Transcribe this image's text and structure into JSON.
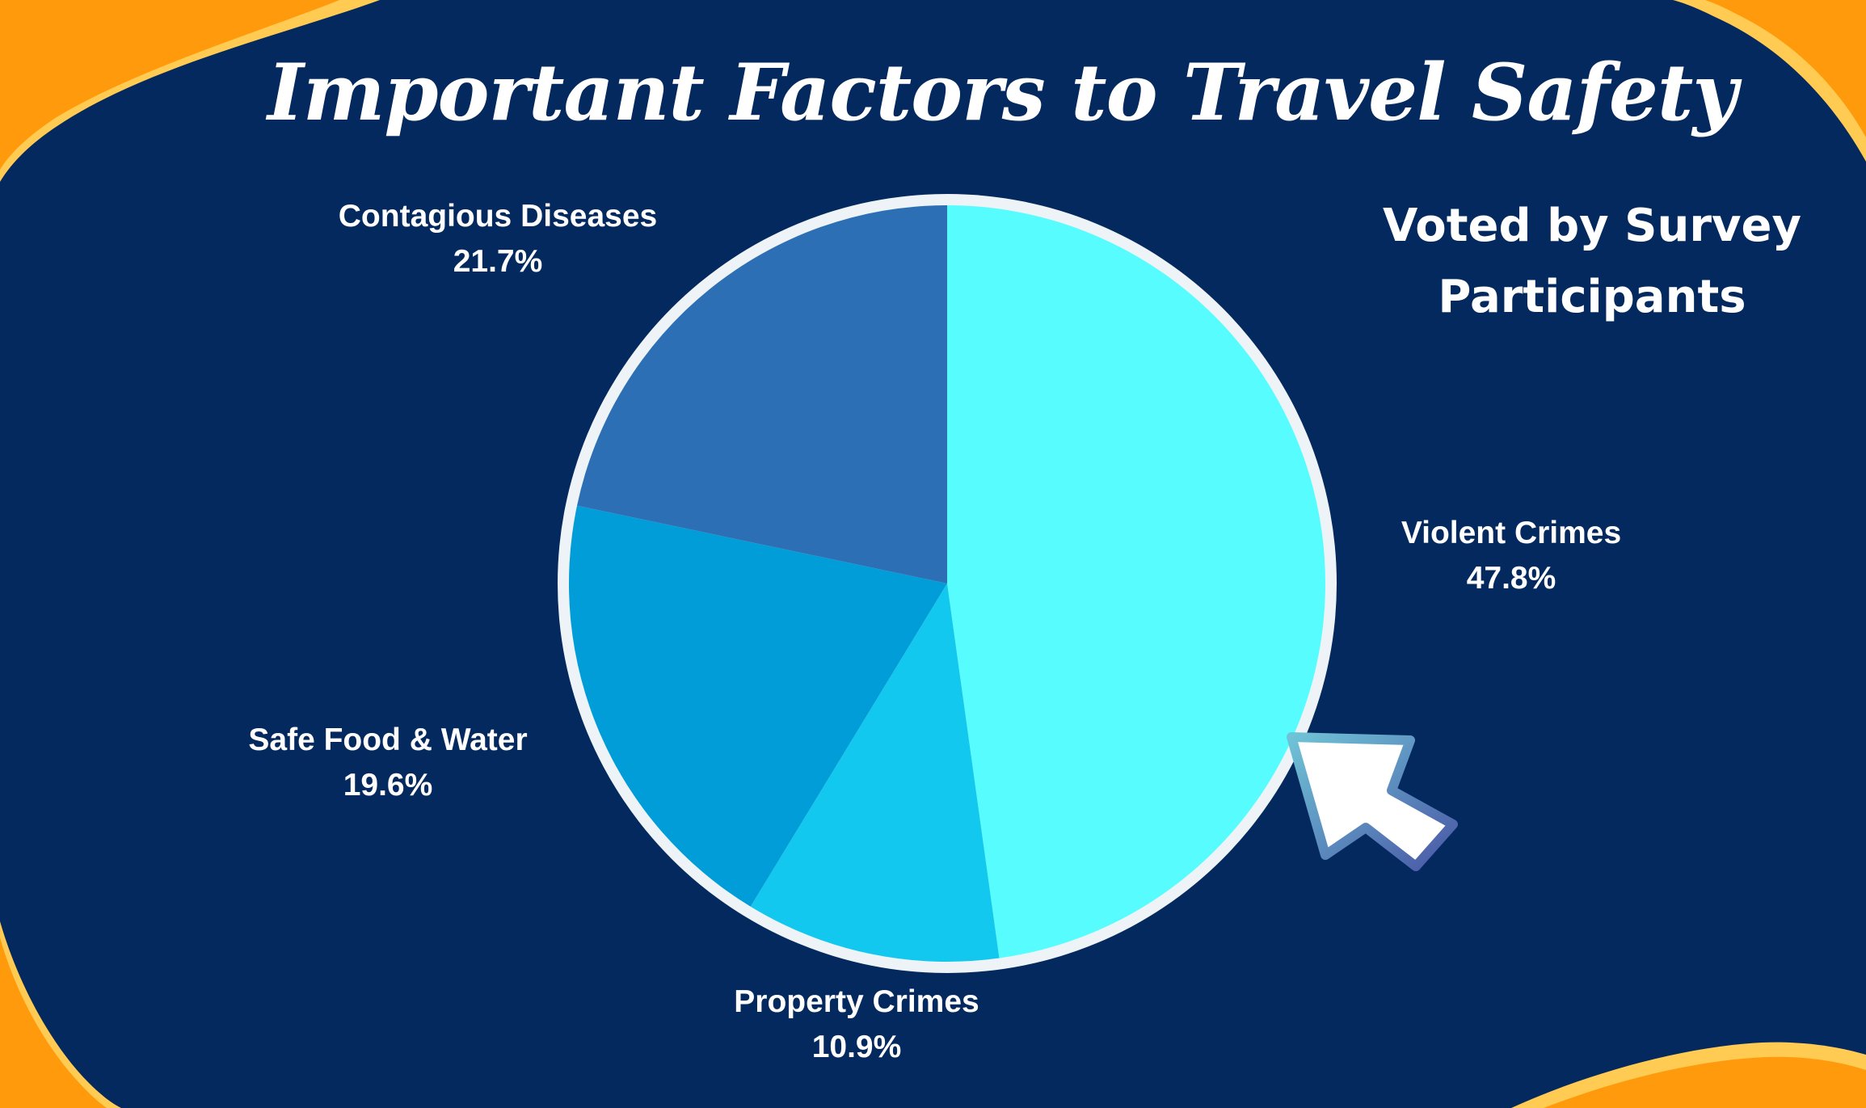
{
  "title": "Important Factors to Travel Safety",
  "subtitle": "Voted by Survey Participants",
  "colors": {
    "background": "#04295e",
    "accent_light": "#ffcb52",
    "accent_dark": "#ff9a0d",
    "pie_border": "#eef3f7",
    "label_text": "#ffffff"
  },
  "chart_data": {
    "type": "pie",
    "title": "Important Factors to Travel Safety",
    "subtitle": "Voted by Survey Participants",
    "categories": [
      "Violent Crimes",
      "Property Crimes",
      "Safe Food & Water",
      "Contagious Diseases"
    ],
    "values": [
      47.8,
      10.9,
      19.6,
      21.7
    ],
    "value_labels": [
      "47.8%",
      "10.9%",
      "19.6%",
      "21.7%"
    ],
    "colors": [
      "#57fdfe",
      "#12c8ee",
      "#009dd8",
      "#2d6fb5"
    ],
    "start_angle": "12 o'clock",
    "direction": "clockwise",
    "legend": "none"
  },
  "decorations": {
    "cursor_icon": "pointer-arrow-icon"
  }
}
